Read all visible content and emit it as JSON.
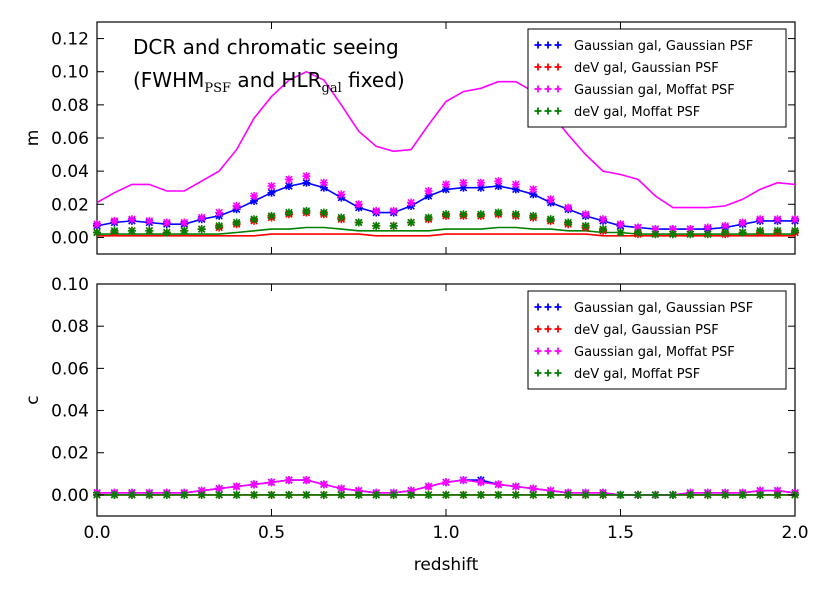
{
  "chart_data": [
    {
      "type": "line",
      "panel": "top",
      "ylabel": "m",
      "xlim": [
        0,
        2.0
      ],
      "ylim": [
        -0.01,
        0.13
      ],
      "yticks": [
        0.0,
        0.02,
        0.04,
        0.06,
        0.08,
        0.1,
        0.12
      ],
      "ytick_labels": [
        "0.00",
        "0.02",
        "0.04",
        "0.06",
        "0.08",
        "0.10",
        "0.12"
      ],
      "annotation": {
        "line1": "DCR and chromatic seeing",
        "line2_open": "(FWHM",
        "line2_sub1": "PSF",
        "line2_mid": " and HLR",
        "line2_sub2": "gal",
        "line2_close": " fixed)"
      },
      "legend": {
        "position": "top-right",
        "entries": [
          {
            "label": "Gaussian gal, Gaussian PSF",
            "color": "#0000ff"
          },
          {
            "label": "deV gal, Gaussian PSF",
            "color": "#ff0000"
          },
          {
            "label": "Gaussian gal, Moffat PSF",
            "color": "#ff00ff"
          },
          {
            "label": "deV gal, Moffat PSF",
            "color": "#008000"
          }
        ]
      },
      "x": [
        0.0,
        0.05,
        0.1,
        0.15,
        0.2,
        0.25,
        0.3,
        0.35,
        0.4,
        0.45,
        0.5,
        0.55,
        0.6,
        0.65,
        0.7,
        0.75,
        0.8,
        0.85,
        0.9,
        0.95,
        1.0,
        1.05,
        1.1,
        1.15,
        1.2,
        1.25,
        1.3,
        1.35,
        1.4,
        1.45,
        1.5,
        1.55,
        1.6,
        1.65,
        1.7,
        1.75,
        1.8,
        1.85,
        1.9,
        1.95,
        2.0
      ],
      "series": [
        {
          "name": "Gaussian gal, Gaussian PSF",
          "color": "#0000ff",
          "line": [
            0.007,
            0.009,
            0.01,
            0.009,
            0.008,
            0.008,
            0.011,
            0.013,
            0.017,
            0.022,
            0.027,
            0.031,
            0.033,
            0.03,
            0.024,
            0.018,
            0.015,
            0.015,
            0.019,
            0.025,
            0.029,
            0.03,
            0.03,
            0.031,
            0.029,
            0.026,
            0.021,
            0.017,
            0.013,
            0.01,
            0.007,
            0.006,
            0.005,
            0.005,
            0.005,
            0.005,
            0.006,
            0.008,
            0.01,
            0.01,
            0.01
          ],
          "markers": [
            0.007,
            0.009,
            0.01,
            0.009,
            0.008,
            0.008,
            0.011,
            0.013,
            0.017,
            0.022,
            0.027,
            0.031,
            0.033,
            0.03,
            0.024,
            0.018,
            0.015,
            0.015,
            0.019,
            0.025,
            0.029,
            0.03,
            0.03,
            0.031,
            0.029,
            0.026,
            0.021,
            0.017,
            0.013,
            0.01,
            0.007,
            0.006,
            0.005,
            0.005,
            0.005,
            0.005,
            0.006,
            0.008,
            0.01,
            0.01,
            0.01
          ]
        },
        {
          "name": "deV gal, Gaussian PSF",
          "color": "#ff0000",
          "line": [
            0.001,
            0.001,
            0.001,
            0.001,
            0.001,
            0.001,
            0.001,
            0.001,
            0.001,
            0.001,
            0.002,
            0.002,
            0.002,
            0.002,
            0.002,
            0.002,
            0.001,
            0.001,
            0.001,
            0.001,
            0.002,
            0.002,
            0.002,
            0.002,
            0.002,
            0.002,
            0.002,
            0.002,
            0.002,
            0.001,
            0.001,
            0.001,
            0.001,
            0.001,
            0.001,
            0.001,
            0.001,
            0.001,
            0.001,
            0.001,
            0.001
          ],
          "markers": [
            0.003,
            0.003,
            0.004,
            0.004,
            0.003,
            0.004,
            0.005,
            0.006,
            0.008,
            0.01,
            0.012,
            0.014,
            0.015,
            0.014,
            0.011,
            0.009,
            0.007,
            0.007,
            0.009,
            0.011,
            0.013,
            0.013,
            0.013,
            0.014,
            0.013,
            0.012,
            0.01,
            0.008,
            0.006,
            0.004,
            0.003,
            0.002,
            0.002,
            0.002,
            0.002,
            0.002,
            0.002,
            0.003,
            0.003,
            0.003,
            0.003
          ]
        },
        {
          "name": "Gaussian gal, Moffat PSF",
          "color": "#ff00ff",
          "line": [
            0.021,
            0.027,
            0.032,
            0.032,
            0.028,
            0.028,
            0.034,
            0.04,
            0.053,
            0.072,
            0.085,
            0.095,
            0.1,
            0.095,
            0.08,
            0.064,
            0.055,
            0.052,
            0.053,
            0.068,
            0.082,
            0.088,
            0.09,
            0.094,
            0.094,
            0.088,
            0.075,
            0.062,
            0.05,
            0.04,
            0.038,
            0.035,
            0.025,
            0.018,
            0.018,
            0.018,
            0.019,
            0.023,
            0.029,
            0.033,
            0.032
          ],
          "markers": [
            0.008,
            0.01,
            0.011,
            0.01,
            0.009,
            0.009,
            0.012,
            0.015,
            0.019,
            0.025,
            0.031,
            0.035,
            0.037,
            0.033,
            0.026,
            0.02,
            0.016,
            0.016,
            0.021,
            0.028,
            0.032,
            0.033,
            0.033,
            0.034,
            0.032,
            0.029,
            0.023,
            0.018,
            0.014,
            0.011,
            0.008,
            0.006,
            0.005,
            0.005,
            0.005,
            0.006,
            0.007,
            0.009,
            0.011,
            0.011,
            0.011
          ]
        },
        {
          "name": "deV gal, Moffat PSF",
          "color": "#008000",
          "line": [
            0.002,
            0.002,
            0.002,
            0.002,
            0.002,
            0.002,
            0.002,
            0.002,
            0.003,
            0.004,
            0.005,
            0.005,
            0.006,
            0.006,
            0.005,
            0.004,
            0.004,
            0.004,
            0.004,
            0.004,
            0.005,
            0.005,
            0.005,
            0.006,
            0.006,
            0.005,
            0.005,
            0.004,
            0.004,
            0.003,
            0.003,
            0.002,
            0.002,
            0.002,
            0.002,
            0.002,
            0.002,
            0.002,
            0.002,
            0.002,
            0.002
          ],
          "markers": [
            0.003,
            0.004,
            0.004,
            0.004,
            0.003,
            0.004,
            0.005,
            0.007,
            0.009,
            0.011,
            0.013,
            0.015,
            0.016,
            0.015,
            0.012,
            0.009,
            0.007,
            0.007,
            0.009,
            0.012,
            0.014,
            0.014,
            0.014,
            0.015,
            0.014,
            0.013,
            0.011,
            0.009,
            0.007,
            0.005,
            0.003,
            0.003,
            0.002,
            0.002,
            0.002,
            0.002,
            0.003,
            0.003,
            0.004,
            0.004,
            0.004
          ]
        }
      ]
    },
    {
      "type": "line",
      "panel": "bottom",
      "xlabel": "redshift",
      "ylabel": "c",
      "xlim": [
        0,
        2.0
      ],
      "ylim": [
        -0.01,
        0.1
      ],
      "xticks": [
        0.0,
        0.5,
        1.0,
        1.5,
        2.0
      ],
      "xtick_labels": [
        "0.0",
        "0.5",
        "1.0",
        "1.5",
        "2.0"
      ],
      "yticks": [
        0.0,
        0.02,
        0.04,
        0.06,
        0.08,
        0.1
      ],
      "ytick_labels": [
        "0.00",
        "0.02",
        "0.04",
        "0.06",
        "0.08",
        "0.10"
      ],
      "legend": {
        "position": "top-right",
        "entries": [
          {
            "label": "Gaussian gal, Gaussian PSF",
            "color": "#0000ff"
          },
          {
            "label": "deV gal, Gaussian PSF",
            "color": "#ff0000"
          },
          {
            "label": "Gaussian gal, Moffat PSF",
            "color": "#ff00ff"
          },
          {
            "label": "deV gal, Moffat PSF",
            "color": "#008000"
          }
        ]
      },
      "x": [
        0.0,
        0.05,
        0.1,
        0.15,
        0.2,
        0.25,
        0.3,
        0.35,
        0.4,
        0.45,
        0.5,
        0.55,
        0.6,
        0.65,
        0.7,
        0.75,
        0.8,
        0.85,
        0.9,
        0.95,
        1.0,
        1.05,
        1.1,
        1.15,
        1.2,
        1.25,
        1.3,
        1.35,
        1.4,
        1.45,
        1.5,
        1.55,
        1.6,
        1.65,
        1.7,
        1.75,
        1.8,
        1.85,
        1.9,
        1.95,
        2.0
      ],
      "series": [
        {
          "name": "Gaussian gal, Gaussian PSF",
          "color": "#0000ff",
          "line": [
            0.001,
            0.001,
            0.001,
            0.001,
            0.001,
            0.001,
            0.002,
            0.003,
            0.004,
            0.005,
            0.006,
            0.007,
            0.007,
            0.005,
            0.003,
            0.002,
            0.001,
            0.001,
            0.002,
            0.004,
            0.006,
            0.007,
            0.007,
            0.005,
            0.004,
            0.003,
            0.002,
            0.001,
            0.001,
            0.001,
            0.0,
            0.0,
            0.0,
            0.0,
            0.001,
            0.001,
            0.001,
            0.001,
            0.002,
            0.002,
            0.001
          ],
          "markers": [
            0.001,
            0.001,
            0.001,
            0.001,
            0.001,
            0.001,
            0.002,
            0.003,
            0.004,
            0.005,
            0.006,
            0.007,
            0.007,
            0.005,
            0.003,
            0.002,
            0.001,
            0.001,
            0.002,
            0.004,
            0.006,
            0.007,
            0.007,
            0.005,
            0.004,
            0.003,
            0.002,
            0.001,
            0.001,
            0.001,
            0.0,
            0.0,
            0.0,
            0.0,
            0.001,
            0.001,
            0.001,
            0.001,
            0.002,
            0.002,
            0.001
          ]
        },
        {
          "name": "deV gal, Gaussian PSF",
          "color": "#ff0000",
          "line": [
            0.0,
            0.0,
            0.0,
            0.0,
            0.0,
            0.0,
            0.0,
            0.0,
            0.0,
            0.0,
            0.0,
            0.0,
            0.0,
            0.0,
            0.0,
            0.0,
            0.0,
            0.0,
            0.0,
            0.0,
            0.0,
            0.0,
            0.0,
            0.0,
            0.0,
            0.0,
            0.0,
            0.0,
            0.0,
            0.0,
            0.0,
            0.0,
            0.0,
            0.0,
            0.0,
            0.0,
            0.0,
            0.0,
            0.0,
            0.0,
            0.0
          ],
          "markers": [
            0.0,
            0.0,
            0.0,
            0.0,
            0.0,
            0.0,
            0.0,
            0.0,
            0.0,
            0.0,
            0.0,
            0.0,
            0.0,
            0.0,
            0.0,
            0.0,
            0.0,
            0.0,
            0.0,
            0.0,
            0.0,
            0.0,
            0.0,
            0.0,
            0.0,
            0.0,
            0.0,
            0.0,
            0.0,
            0.0,
            0.0,
            0.0,
            0.0,
            0.0,
            0.0,
            0.0,
            0.0,
            0.0,
            0.0,
            0.0,
            0.0
          ]
        },
        {
          "name": "Gaussian gal, Moffat PSF",
          "color": "#ff00ff",
          "line": [
            0.001,
            0.001,
            0.001,
            0.001,
            0.001,
            0.001,
            0.002,
            0.003,
            0.004,
            0.005,
            0.006,
            0.007,
            0.007,
            0.005,
            0.003,
            0.002,
            0.001,
            0.001,
            0.002,
            0.004,
            0.006,
            0.007,
            0.006,
            0.005,
            0.004,
            0.003,
            0.002,
            0.001,
            0.001,
            0.001,
            0.0,
            0.0,
            0.0,
            0.0,
            0.001,
            0.001,
            0.001,
            0.001,
            0.002,
            0.002,
            0.001
          ],
          "markers": [
            0.001,
            0.001,
            0.001,
            0.001,
            0.001,
            0.001,
            0.002,
            0.003,
            0.004,
            0.005,
            0.006,
            0.007,
            0.007,
            0.005,
            0.003,
            0.002,
            0.001,
            0.001,
            0.002,
            0.004,
            0.006,
            0.007,
            0.006,
            0.005,
            0.004,
            0.003,
            0.002,
            0.001,
            0.001,
            0.001,
            0.0,
            0.0,
            0.0,
            0.0,
            0.001,
            0.001,
            0.001,
            0.001,
            0.002,
            0.002,
            0.001
          ]
        },
        {
          "name": "deV gal, Moffat PSF",
          "color": "#008000",
          "line": [
            0.0,
            0.0,
            0.0,
            0.0,
            0.0,
            0.0,
            0.0,
            0.0,
            0.0,
            0.0,
            0.0,
            0.0,
            0.0,
            0.0,
            0.0,
            0.0,
            0.0,
            0.0,
            0.0,
            0.0,
            0.0,
            0.0,
            0.0,
            0.0,
            0.0,
            0.0,
            0.0,
            0.0,
            0.0,
            0.0,
            0.0,
            0.0,
            0.0,
            0.0,
            0.0,
            0.0,
            0.0,
            0.0,
            0.0,
            0.0,
            0.0
          ],
          "markers": [
            0.0,
            0.0,
            0.0,
            0.0,
            0.0,
            0.0,
            0.0,
            0.0,
            0.0,
            0.0,
            0.0,
            0.0,
            0.0,
            0.0,
            0.0,
            0.0,
            0.0,
            0.0,
            0.0,
            0.0,
            0.0,
            0.0,
            0.0,
            0.0,
            0.0,
            0.0,
            0.0,
            0.0,
            0.0,
            0.0,
            0.0,
            0.0,
            0.0,
            0.0,
            0.0,
            0.0,
            0.0,
            0.0,
            0.0,
            0.0,
            0.0
          ]
        }
      ]
    }
  ]
}
